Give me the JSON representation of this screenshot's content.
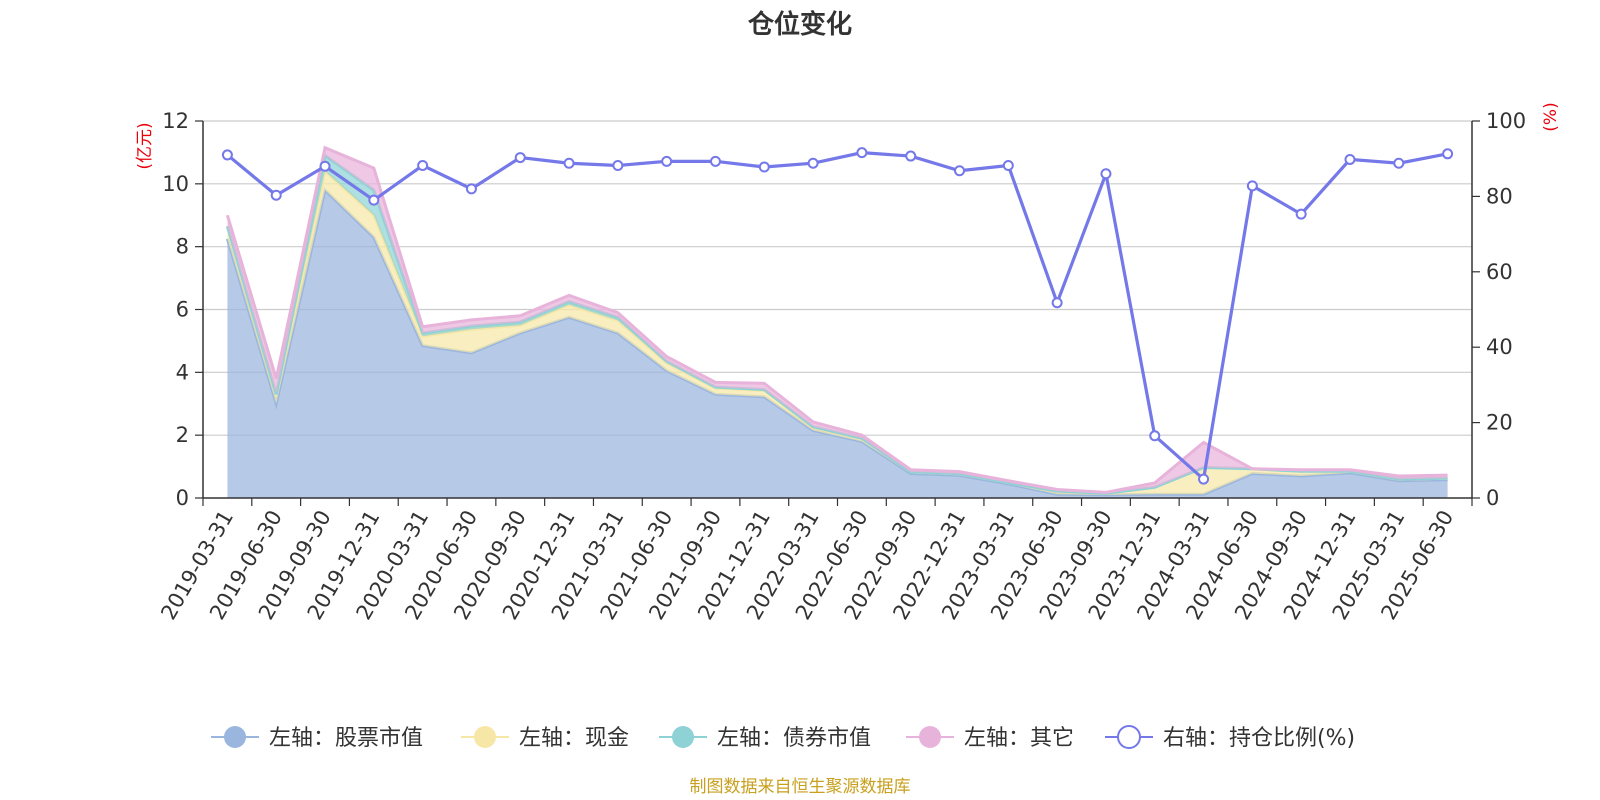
{
  "chart_data": {
    "type": "area",
    "title": "仓位变化",
    "x": [
      "2019-03-31",
      "2019-06-30",
      "2019-09-30",
      "2019-12-31",
      "2020-03-31",
      "2020-06-30",
      "2020-09-30",
      "2020-12-31",
      "2021-03-31",
      "2021-06-30",
      "2021-09-30",
      "2021-12-31",
      "2022-03-31",
      "2022-06-30",
      "2022-09-30",
      "2022-12-31",
      "2023-03-31",
      "2023-06-30",
      "2023-09-30",
      "2023-12-31",
      "2024-03-31",
      "2024-06-30",
      "2024-09-30",
      "2024-12-31",
      "2025-03-31",
      "2025-06-30"
    ],
    "left_axis": {
      "unit": "(亿元)",
      "ylim": [
        0,
        12
      ],
      "ticks": [
        0,
        2,
        4,
        6,
        8,
        10,
        12
      ]
    },
    "right_axis": {
      "unit": "(%)",
      "ylim": [
        0,
        100
      ],
      "ticks": [
        0,
        20,
        40,
        60,
        80,
        100
      ]
    },
    "stacked": true,
    "grid": true,
    "legend_position": "bottom",
    "series": [
      {
        "name": "左轴：股票市值",
        "axis": "left",
        "type": "area",
        "color": "#9ab6df",
        "values": [
          8.25,
          3.0,
          9.8,
          8.3,
          4.85,
          4.62,
          5.25,
          5.75,
          5.25,
          4.05,
          3.3,
          3.22,
          2.15,
          1.8,
          0.78,
          0.72,
          0.45,
          0.12,
          0.1,
          0.12,
          0.12,
          0.78,
          0.7,
          0.8,
          0.55,
          0.58
        ]
      },
      {
        "name": "左轴：现金",
        "axis": "left",
        "type": "area",
        "color": "#f6e7a6",
        "values": [
          0.4,
          0.3,
          0.6,
          0.7,
          0.3,
          0.75,
          0.25,
          0.4,
          0.4,
          0.25,
          0.2,
          0.2,
          0.1,
          0.08,
          0.05,
          0.05,
          0.04,
          0.1,
          0.05,
          0.22,
          0.85,
          0.15,
          0.15,
          0.05,
          0.05,
          0.05
        ]
      },
      {
        "name": "左轴：债券市值",
        "axis": "left",
        "type": "area",
        "color": "#8fd2d6",
        "values": [
          0.0,
          0.0,
          0.5,
          0.8,
          0.1,
          0.1,
          0.1,
          0.1,
          0.1,
          0.05,
          0.03,
          0.03,
          0.02,
          0.02,
          0.0,
          0.0,
          0.0,
          0.0,
          0.0,
          0.0,
          0.0,
          0.0,
          0.0,
          0.0,
          0.0,
          0.0
        ]
      },
      {
        "name": "左轴：其它",
        "axis": "left",
        "type": "area",
        "color": "#e8b3da",
        "values": [
          0.35,
          0.5,
          0.25,
          0.7,
          0.2,
          0.2,
          0.2,
          0.2,
          0.15,
          0.15,
          0.15,
          0.2,
          0.15,
          0.1,
          0.07,
          0.07,
          0.06,
          0.05,
          0.03,
          0.14,
          0.8,
          0.0,
          0.05,
          0.05,
          0.1,
          0.1
        ]
      },
      {
        "name": "右轴：持仓比例(%)",
        "axis": "right",
        "type": "line",
        "color": "#7478e8",
        "values": [
          91.0,
          80.3,
          88.0,
          79.0,
          88.2,
          82.0,
          90.3,
          88.8,
          88.2,
          89.3,
          89.3,
          87.8,
          88.8,
          91.6,
          90.7,
          86.8,
          88.2,
          51.8,
          86.0,
          16.5,
          5.0,
          82.8,
          75.3,
          89.8,
          88.8,
          91.3
        ]
      }
    ]
  },
  "footer": {
    "source": "制图数据来自恒生聚源数据库"
  }
}
